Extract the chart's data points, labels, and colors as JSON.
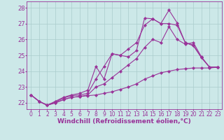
{
  "background_color": "#cce8e8",
  "grid_color": "#aacccc",
  "line_color": "#993399",
  "marker": "D",
  "markersize": 2.2,
  "linewidth": 0.8,
  "xlabel": "Windchill (Refroidissement éolien,°C)",
  "xlabel_fontsize": 6.5,
  "tick_fontsize": 6,
  "xlim": [
    -0.5,
    23.5
  ],
  "ylim": [
    21.6,
    28.4
  ],
  "yticks": [
    22,
    23,
    24,
    25,
    26,
    27,
    28
  ],
  "xticks": [
    0,
    1,
    2,
    3,
    4,
    5,
    6,
    7,
    8,
    9,
    10,
    11,
    12,
    13,
    14,
    15,
    16,
    17,
    18,
    19,
    20,
    21,
    22,
    23
  ],
  "series": [
    [
      22.5,
      22.1,
      21.85,
      22.0,
      22.2,
      22.35,
      22.4,
      22.45,
      22.5,
      22.6,
      22.7,
      22.85,
      23.0,
      23.2,
      23.5,
      23.7,
      23.9,
      24.0,
      24.1,
      24.15,
      24.2,
      24.2,
      24.2,
      24.25
    ],
    [
      22.5,
      22.1,
      21.85,
      22.0,
      22.2,
      22.35,
      22.4,
      22.5,
      23.0,
      23.2,
      23.6,
      24.0,
      24.4,
      24.8,
      25.5,
      26.0,
      25.8,
      26.8,
      26.0,
      25.7,
      25.8,
      24.9,
      24.25,
      24.25
    ],
    [
      22.5,
      22.1,
      21.85,
      22.05,
      22.3,
      22.45,
      22.5,
      22.6,
      23.5,
      24.3,
      25.1,
      25.0,
      25.4,
      25.8,
      26.9,
      27.3,
      27.0,
      27.0,
      26.9,
      25.8,
      25.6,
      24.85,
      24.25,
      24.25
    ],
    [
      22.5,
      22.1,
      21.85,
      22.1,
      22.35,
      22.5,
      22.6,
      22.8,
      24.3,
      23.5,
      25.1,
      25.0,
      24.9,
      25.3,
      27.35,
      27.3,
      27.0,
      27.85,
      27.05,
      25.8,
      25.65,
      24.85,
      24.25,
      24.25
    ]
  ]
}
